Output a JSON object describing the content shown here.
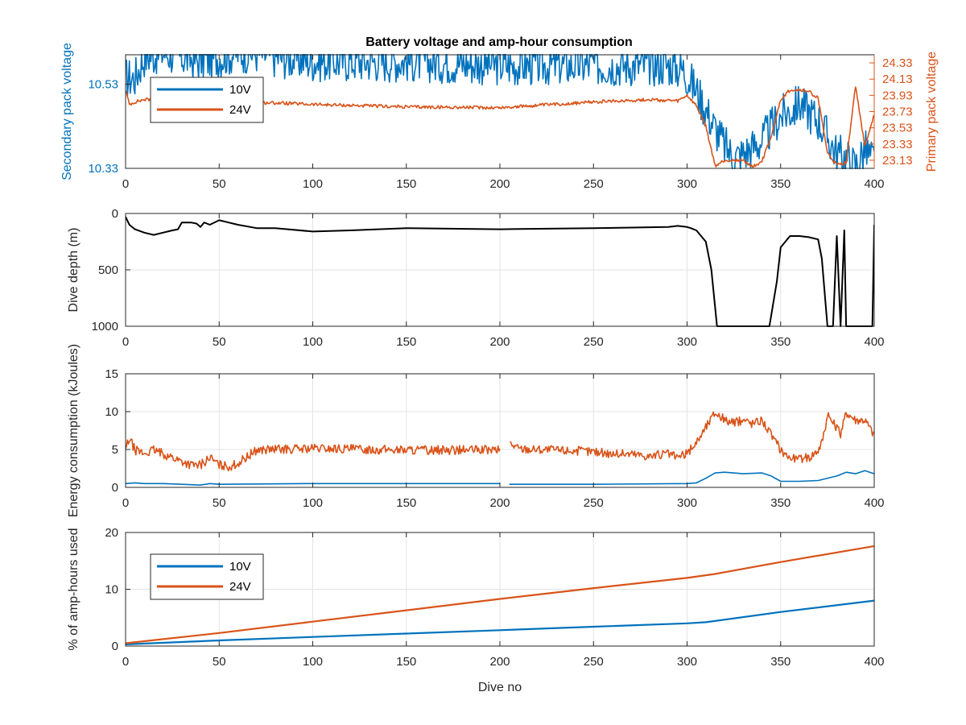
{
  "figure": {
    "title": "Battery voltage and amp-hour consumption",
    "xlabel": "Dive no"
  },
  "colors": {
    "blue": "#0072BD",
    "orange": "#D95319",
    "black": "#000000",
    "grid": "#e3e3e3",
    "axis": "#262626"
  },
  "chart_data": [
    {
      "type": "line",
      "title": "Battery voltage and amp-hour consumption",
      "xlim": [
        0,
        400
      ],
      "xticks": [
        0,
        50,
        100,
        150,
        200,
        250,
        300,
        350,
        400
      ],
      "ylabel": "Secondary pack voltage",
      "ylim": [
        10.33,
        10.6
      ],
      "yticks": [
        "10.33",
        "10.53"
      ],
      "y2label": "Primary pack voltage",
      "y2lim": [
        23.03,
        24.43
      ],
      "y2ticks": [
        "23.13",
        "23.33",
        "23.53",
        "23.73",
        "23.93",
        "24.13",
        "24.33"
      ],
      "grid": false,
      "legend": {
        "entries": [
          "10V",
          "24V"
        ],
        "placement": "top-left"
      },
      "series": [
        {
          "name": "10V",
          "axis": "left",
          "x": [
            0,
            5,
            10,
            20,
            30,
            40,
            50,
            60,
            70,
            80,
            100,
            120,
            150,
            200,
            250,
            290,
            298,
            305,
            315,
            320,
            325,
            330,
            340,
            345,
            350,
            355,
            360,
            370,
            375,
            380,
            385,
            390,
            395,
            400
          ],
          "y": [
            10.55,
            10.55,
            10.6,
            10.61,
            10.6,
            10.59,
            10.6,
            10.61,
            10.61,
            10.6,
            10.59,
            10.59,
            10.59,
            10.58,
            10.58,
            10.58,
            10.57,
            10.52,
            10.43,
            10.39,
            10.36,
            10.37,
            10.4,
            10.43,
            10.46,
            10.47,
            10.49,
            10.45,
            10.41,
            10.37,
            10.36,
            10.34,
            10.38,
            10.35
          ],
          "amplitude": 0.05
        },
        {
          "name": "24V",
          "axis": "right",
          "x": [
            0,
            2,
            5,
            10,
            20,
            40,
            50,
            80,
            100,
            150,
            200,
            250,
            280,
            295,
            300,
            305,
            310,
            315,
            320,
            330,
            335,
            340,
            345,
            350,
            355,
            360,
            365,
            370,
            375,
            380,
            385,
            390,
            395,
            400
          ],
          "y": [
            24.0,
            23.82,
            23.85,
            23.88,
            23.88,
            23.85,
            23.84,
            23.84,
            23.82,
            23.79,
            23.78,
            23.85,
            23.88,
            23.86,
            23.93,
            23.8,
            23.55,
            23.06,
            23.13,
            23.13,
            23.05,
            23.12,
            23.42,
            23.88,
            24.0,
            24.0,
            23.98,
            23.9,
            23.22,
            23.07,
            23.1,
            24.05,
            23.3,
            23.7
          ],
          "amplitude": 0.02
        }
      ]
    },
    {
      "type": "line",
      "xlim": [
        0,
        400
      ],
      "xticks": [
        0,
        50,
        100,
        150,
        200,
        250,
        300,
        350,
        400
      ],
      "ylabel": "Dive depth (m)",
      "ylim": [
        0,
        1000
      ],
      "yreversed": true,
      "yticks": [
        "0",
        "500",
        "1000"
      ],
      "grid": true,
      "series": [
        {
          "x": [
            0,
            2,
            5,
            10,
            15,
            20,
            25,
            28,
            30,
            33,
            35,
            38,
            40,
            42,
            45,
            50,
            55,
            60,
            70,
            80,
            100,
            120,
            150,
            200,
            250,
            290,
            295,
            300,
            302,
            305,
            310,
            313,
            316,
            320,
            330,
            340,
            344,
            348,
            350,
            355,
            360,
            365,
            370,
            372,
            375,
            378,
            380,
            382,
            384,
            385,
            387,
            390,
            395,
            399,
            400
          ],
          "y": [
            30,
            100,
            140,
            170,
            190,
            170,
            150,
            140,
            80,
            80,
            80,
            90,
            120,
            80,
            100,
            60,
            80,
            100,
            130,
            130,
            160,
            150,
            130,
            140,
            130,
            120,
            110,
            120,
            130,
            150,
            250,
            500,
            1000,
            1000,
            1000,
            1000,
            1000,
            600,
            300,
            200,
            200,
            210,
            230,
            400,
            1000,
            1000,
            200,
            1000,
            150,
            1000,
            1000,
            1000,
            1000,
            1000,
            100
          ]
        }
      ]
    },
    {
      "type": "line",
      "xlim": [
        0,
        400
      ],
      "xticks": [
        0,
        50,
        100,
        150,
        200,
        250,
        300,
        350,
        400
      ],
      "ylabel": "Energy consumption (kJoules)",
      "ylim": [
        0,
        15
      ],
      "yticks": [
        "0",
        "5",
        "10",
        "15"
      ],
      "grid": true,
      "series": [
        {
          "name": "10V",
          "x": [
            0,
            5,
            10,
            20,
            30,
            40,
            45,
            50,
            100,
            150,
            200,
            202,
            205,
            250,
            300,
            305,
            310,
            315,
            320,
            330,
            340,
            345,
            350,
            360,
            370,
            380,
            385,
            390,
            395,
            400
          ],
          "y": [
            0.5,
            0.6,
            0.5,
            0.5,
            0.4,
            0.3,
            0.5,
            0.4,
            0.5,
            0.5,
            0.5,
            null,
            0.4,
            0.4,
            0.5,
            0.6,
            1.2,
            1.9,
            2.0,
            1.8,
            1.9,
            1.5,
            0.8,
            0.8,
            0.9,
            1.5,
            2.0,
            1.8,
            2.2,
            1.8
          ]
        },
        {
          "name": "24V",
          "x": [
            0,
            2,
            5,
            10,
            15,
            20,
            25,
            30,
            35,
            40,
            45,
            50,
            55,
            60,
            70,
            100,
            150,
            200,
            201,
            205,
            210,
            230,
            250,
            260,
            270,
            280,
            290,
            295,
            300,
            305,
            310,
            315,
            320,
            325,
            330,
            335,
            340,
            345,
            350,
            355,
            360,
            365,
            370,
            372,
            375,
            380,
            382,
            385,
            390,
            395,
            400
          ],
          "y": [
            5.0,
            6.5,
            5.0,
            4.5,
            5.0,
            4.5,
            4.0,
            3.5,
            3.0,
            3.0,
            4.0,
            3.0,
            2.8,
            3.2,
            5.0,
            5.2,
            5.0,
            5.0,
            null,
            6.0,
            5.2,
            5.0,
            4.8,
            4.5,
            4.5,
            4.2,
            4.5,
            4.0,
            4.5,
            6.0,
            8.0,
            10.0,
            9.0,
            8.5,
            9.0,
            8.5,
            9.0,
            7.0,
            5.0,
            4.0,
            3.8,
            4.0,
            5.0,
            6.0,
            9.5,
            8.0,
            7.0,
            10.0,
            9.0,
            9.0,
            7.0
          ],
          "amplitude": 0.6
        }
      ]
    },
    {
      "type": "line",
      "xlim": [
        0,
        400
      ],
      "xticks": [
        0,
        50,
        100,
        150,
        200,
        250,
        300,
        350,
        400
      ],
      "xlabel": "Dive no",
      "ylabel": "% of amp-hours used",
      "ylim": [
        0,
        20
      ],
      "yticks": [
        "0",
        "10",
        "20"
      ],
      "grid": true,
      "legend": {
        "entries": [
          "10V",
          "24V"
        ],
        "placement": "top-left"
      },
      "series": [
        {
          "name": "10V",
          "x": [
            0,
            50,
            100,
            150,
            200,
            250,
            300,
            310,
            350,
            400
          ],
          "y": [
            0.3,
            1.0,
            1.6,
            2.2,
            2.8,
            3.4,
            4.0,
            4.2,
            6.0,
            8.0
          ]
        },
        {
          "name": "24V",
          "x": [
            0,
            50,
            100,
            150,
            200,
            250,
            300,
            315,
            350,
            400
          ],
          "y": [
            0.5,
            2.3,
            4.3,
            6.3,
            8.3,
            10.2,
            12.0,
            12.7,
            14.8,
            17.6
          ]
        }
      ]
    }
  ]
}
